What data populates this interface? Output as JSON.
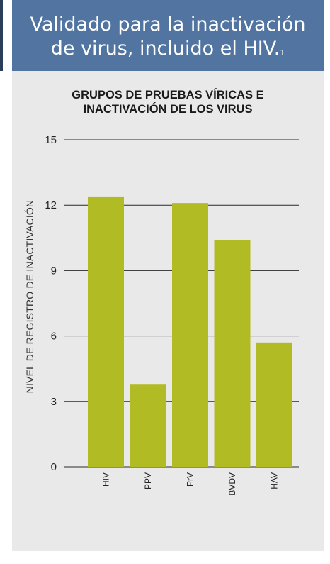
{
  "header": {
    "line1": "Validado para la inactivación",
    "line2": "de virus, incluido el HIV.",
    "footnote": "1"
  },
  "colors": {
    "header_bg": "#5174a0",
    "bar": "#b1bb23",
    "panel_bg": "#e9e9ea"
  },
  "chart_data": {
    "type": "bar",
    "title_lines": [
      "GRUPOS DE PRUEBAS VÍRICAS E",
      "INACTIVACIÓN DE LOS VIRUS"
    ],
    "ylabel": "NIVEL DE REGISTRO DE INACTIVACIÓN",
    "xlabel": "",
    "categories": [
      "HIV",
      "PPV",
      "PrV",
      "BVDV",
      "HAV"
    ],
    "values": [
      12.4,
      3.8,
      12.1,
      10.4,
      5.7
    ],
    "ylim": [
      0,
      15
    ],
    "yticks": [
      0,
      3,
      6,
      9,
      12,
      15
    ],
    "grid": true,
    "legend": "none"
  }
}
